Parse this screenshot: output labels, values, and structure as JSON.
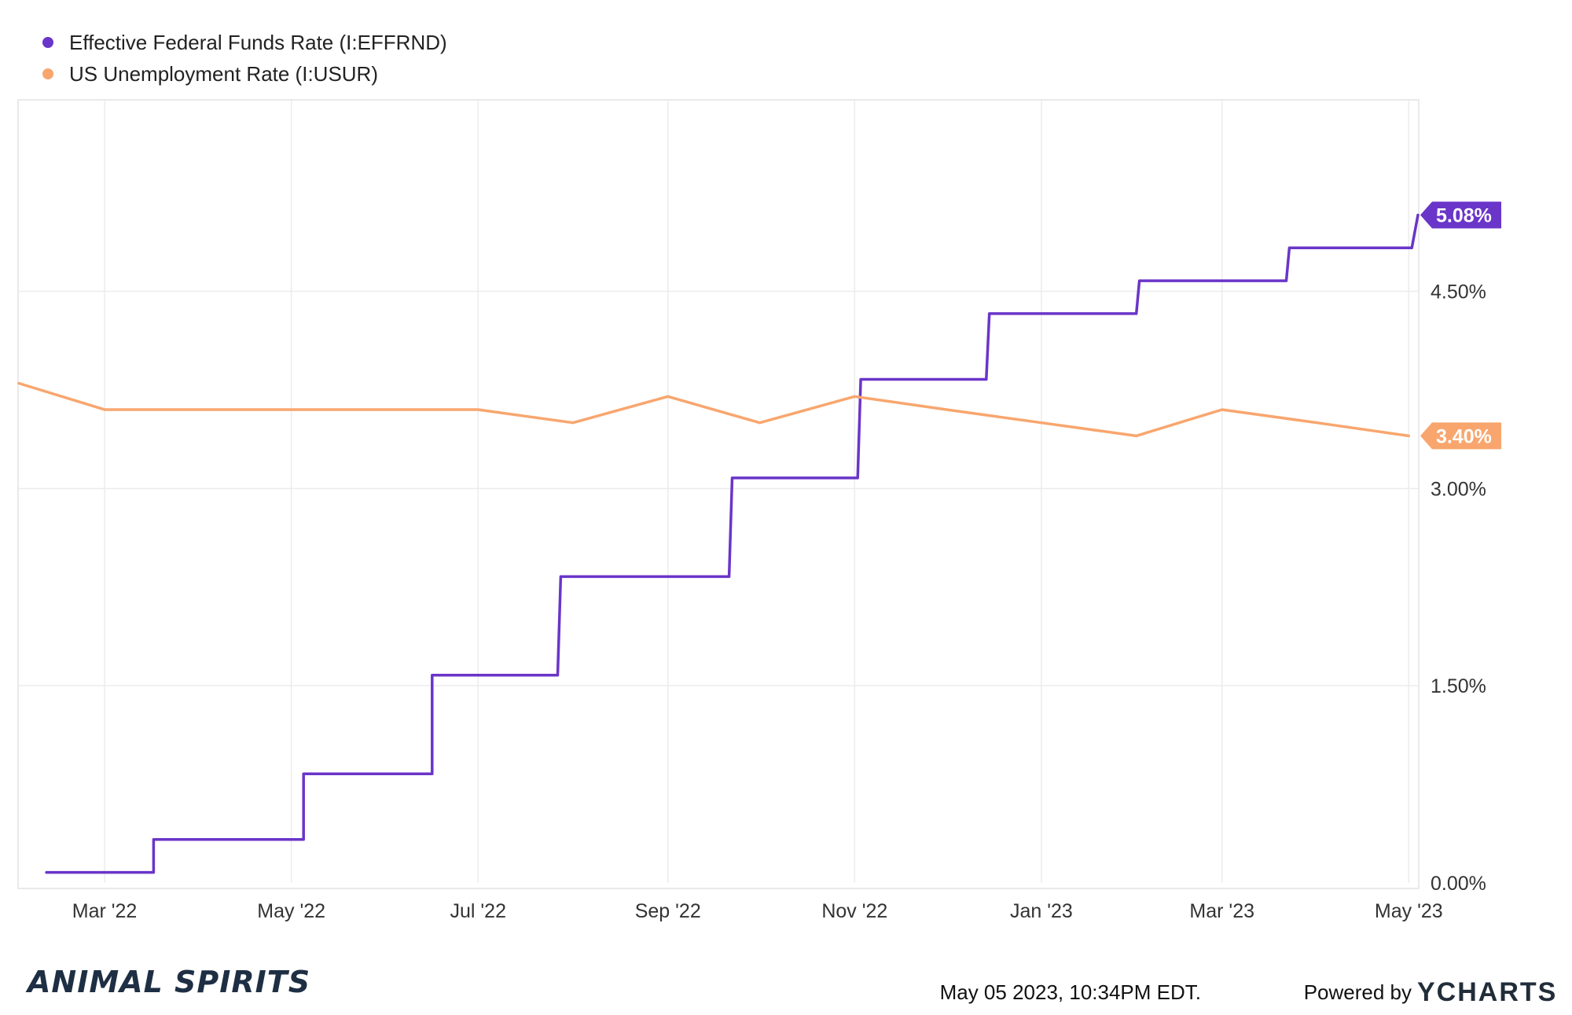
{
  "chart_data": {
    "type": "line",
    "series": [
      {
        "name": "Effective Federal Funds Rate (I:EFFRND)",
        "color": "#6a35c9",
        "step": true,
        "points": [
          [
            "2022-02-10",
            0.08
          ],
          [
            "2022-03-17",
            0.08
          ],
          [
            "2022-03-17",
            0.33
          ],
          [
            "2022-05-05",
            0.33
          ],
          [
            "2022-05-05",
            0.83
          ],
          [
            "2022-06-16",
            0.83
          ],
          [
            "2022-06-16",
            1.58
          ],
          [
            "2022-07-27",
            1.58
          ],
          [
            "2022-07-28",
            2.33
          ],
          [
            "2022-09-21",
            2.33
          ],
          [
            "2022-09-22",
            3.08
          ],
          [
            "2022-11-02",
            3.08
          ],
          [
            "2022-11-03",
            3.83
          ],
          [
            "2022-12-14",
            3.83
          ],
          [
            "2022-12-15",
            4.33
          ],
          [
            "2023-02-01",
            4.33
          ],
          [
            "2023-02-02",
            4.58
          ],
          [
            "2023-03-22",
            4.58
          ],
          [
            "2023-03-23",
            4.83
          ],
          [
            "2023-05-02",
            4.83
          ],
          [
            "2023-05-04",
            5.08
          ]
        ],
        "last_value_label": "5.08%"
      },
      {
        "name": "US Unemployment Rate (I:USUR)",
        "color": "#f8a66e",
        "step": false,
        "points": [
          [
            "2022-02-01",
            3.8
          ],
          [
            "2022-03-01",
            3.6
          ],
          [
            "2022-04-01",
            3.6
          ],
          [
            "2022-05-01",
            3.6
          ],
          [
            "2022-06-01",
            3.6
          ],
          [
            "2022-07-01",
            3.6
          ],
          [
            "2022-08-01",
            3.5
          ],
          [
            "2022-09-01",
            3.7
          ],
          [
            "2022-10-01",
            3.5
          ],
          [
            "2022-11-01",
            3.7
          ],
          [
            "2022-12-01",
            3.6
          ],
          [
            "2023-01-01",
            3.5
          ],
          [
            "2023-02-01",
            3.4
          ],
          [
            "2023-03-01",
            3.6
          ],
          [
            "2023-04-01",
            3.5
          ],
          [
            "2023-05-01",
            3.4
          ]
        ],
        "last_value_label": "3.40%"
      }
    ],
    "x_ticks": [
      {
        "date": "2022-03-01",
        "label": "Mar '22"
      },
      {
        "date": "2022-05-01",
        "label": "May '22"
      },
      {
        "date": "2022-07-01",
        "label": "Jul '22"
      },
      {
        "date": "2022-09-01",
        "label": "Sep '22"
      },
      {
        "date": "2022-11-01",
        "label": "Nov '22"
      },
      {
        "date": "2023-01-01",
        "label": "Jan '23"
      },
      {
        "date": "2023-03-01",
        "label": "Mar '23"
      },
      {
        "date": "2023-05-01",
        "label": "May '23"
      }
    ],
    "y_ticks": [
      {
        "value": 0.0,
        "label": "0.00%"
      },
      {
        "value": 1.5,
        "label": "1.50%"
      },
      {
        "value": 3.0,
        "label": "3.00%"
      },
      {
        "value": 4.5,
        "label": "4.50%"
      }
    ],
    "xlim": [
      "2022-02-01",
      "2023-05-04"
    ],
    "ylim": [
      0,
      5.95
    ],
    "grid": true,
    "legend": "top-left",
    "y_axis_side": "right"
  },
  "footer": {
    "timestamp": "May 05 2023, 10:34PM EDT.",
    "powered_by": "Powered by",
    "brand": "YCHARTS",
    "logo_text": "ANIMAL SPIRITS"
  }
}
